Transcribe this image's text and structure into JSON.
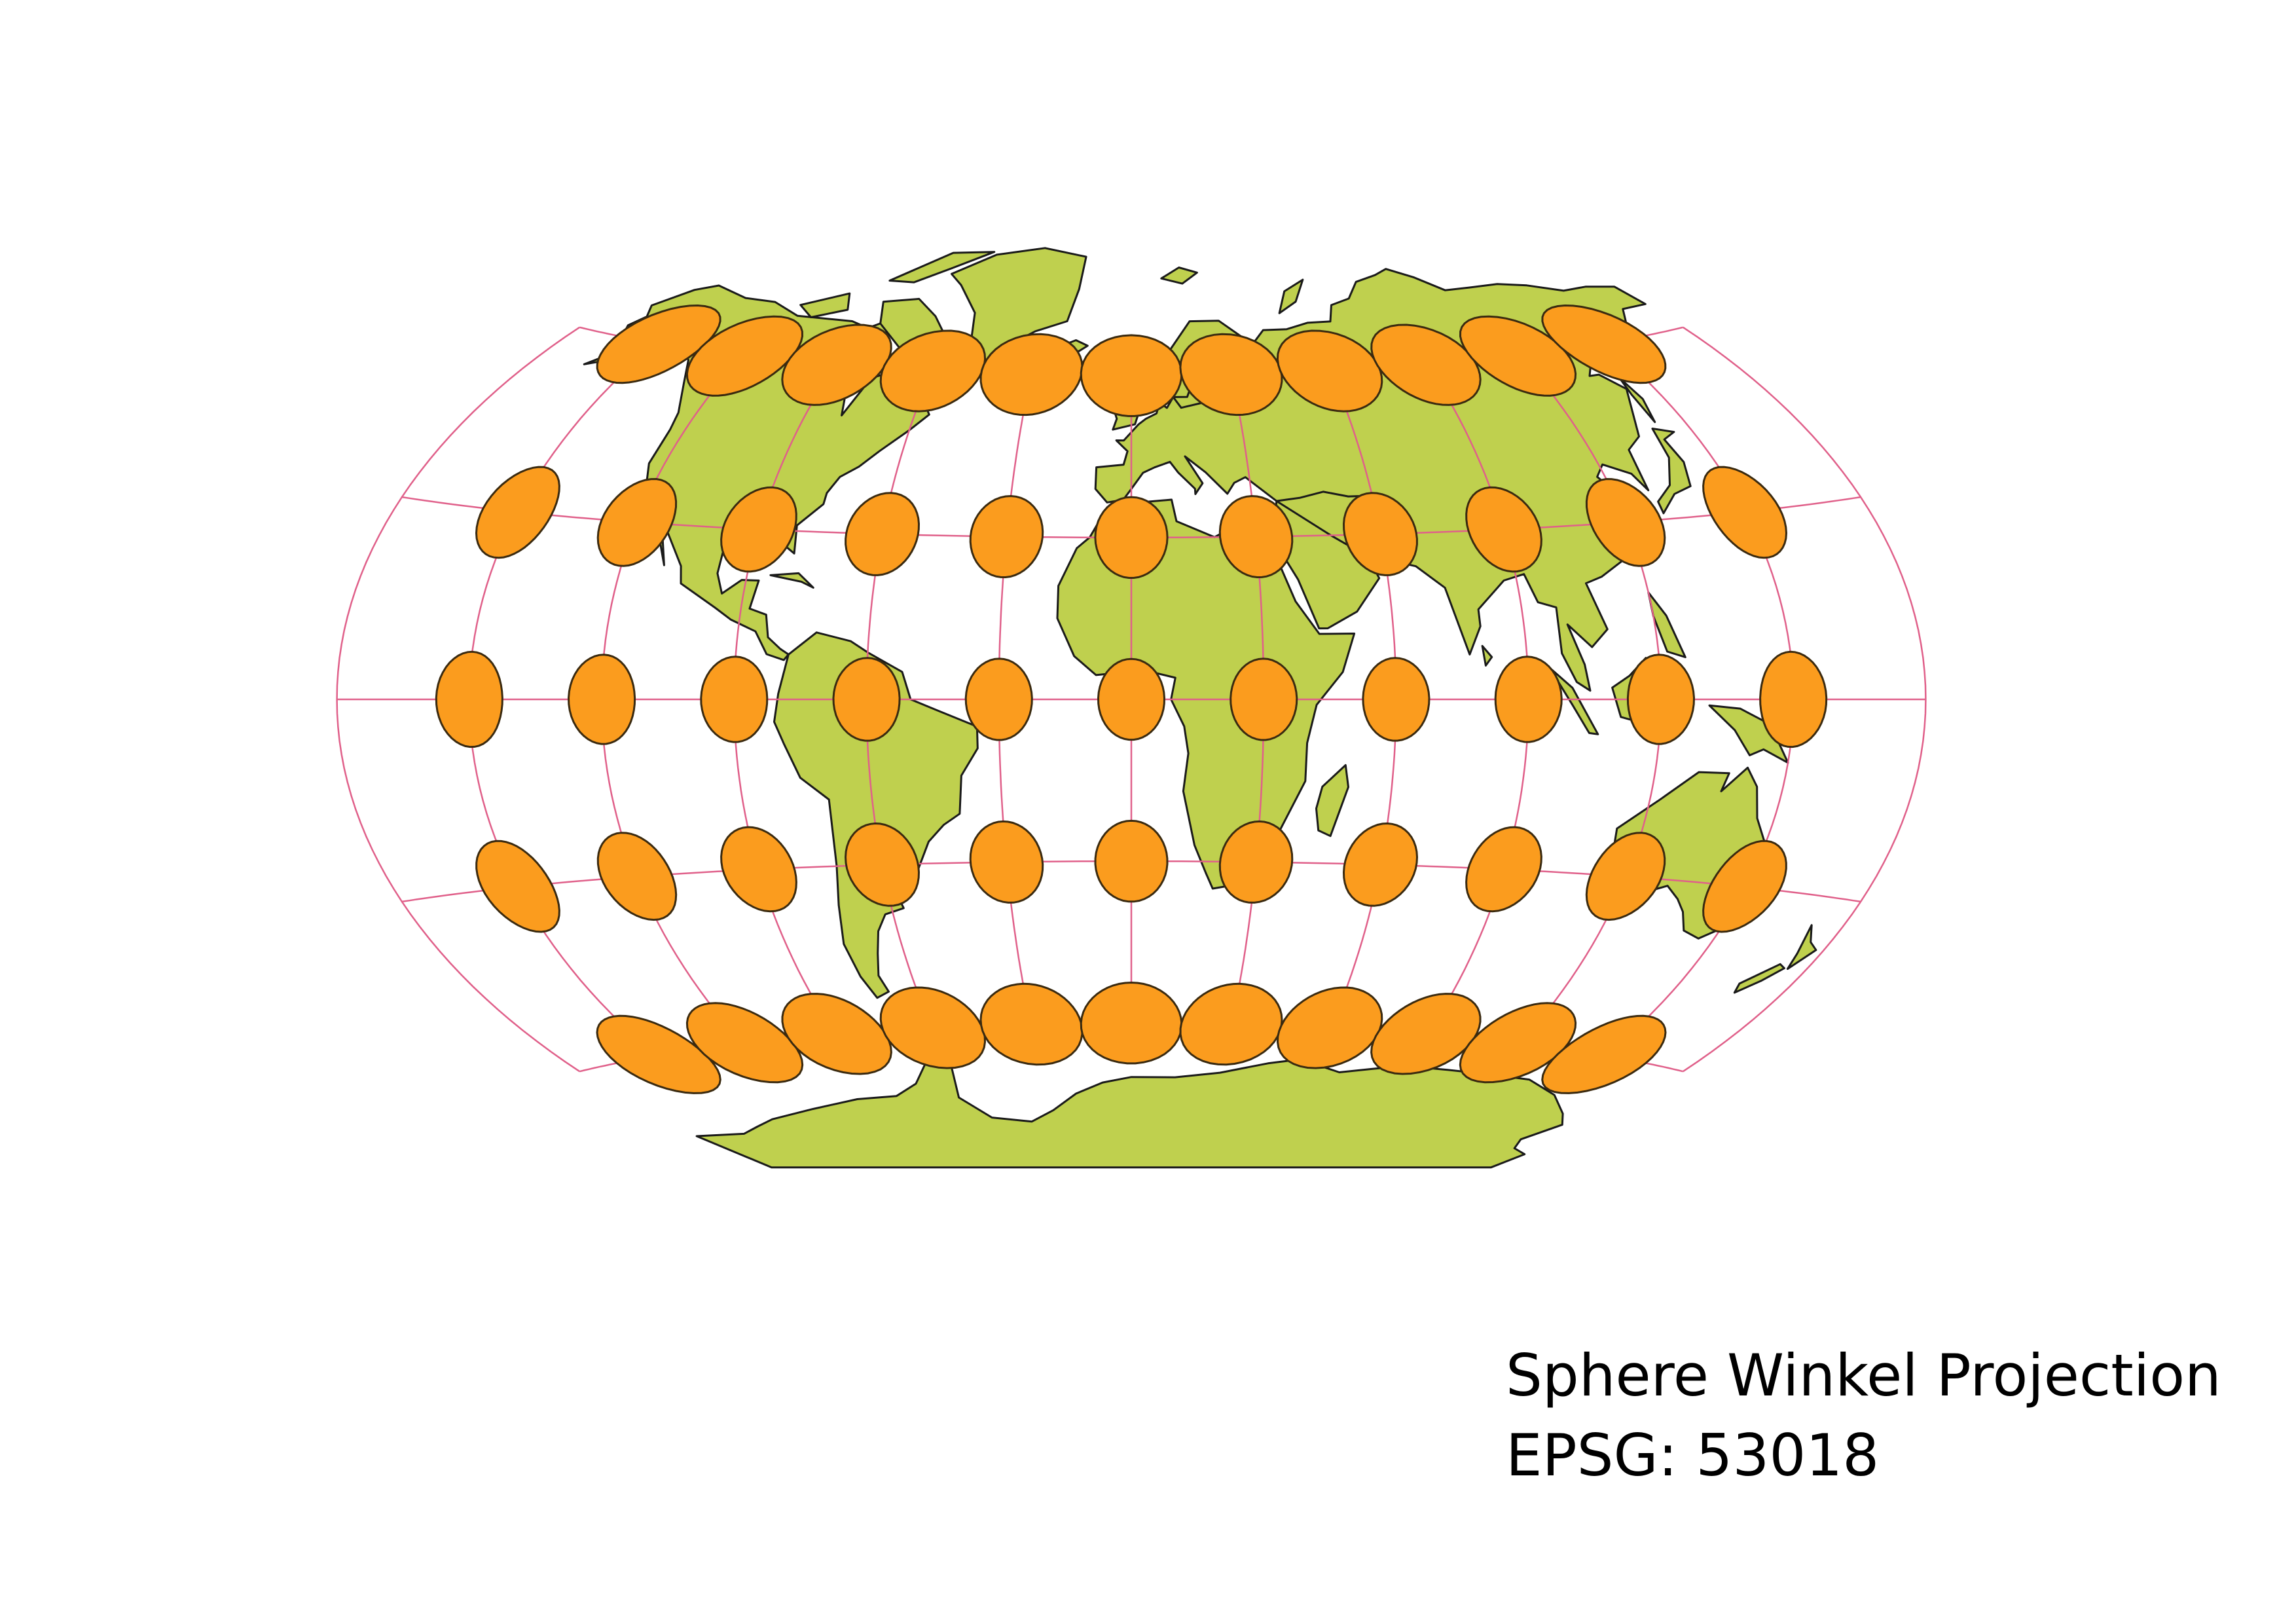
{
  "map": {
    "projection_title": "Sphere Winkel Projection",
    "epsg_label": "EPSG: 53018"
  },
  "style": {
    "land_color": "#bfd04e",
    "land_outline": "#1a1a1a",
    "graticule_color": "#e0608a",
    "ellipse_fill": "#fb9c1e",
    "ellipse_stroke": "#3a2a10",
    "background": "#ffffff"
  },
  "graticule": {
    "latitudes": [
      60,
      30,
      0,
      -30,
      -60
    ],
    "longitudes": [
      -150,
      -120,
      -90,
      -60,
      -30,
      0,
      30,
      60,
      90,
      120,
      150,
      180
    ]
  },
  "tissot_indicatrix": {
    "latitudes": [
      60,
      30,
      0,
      -30,
      -60
    ],
    "longitudes": [
      -150,
      -120,
      -90,
      -60,
      -30,
      0,
      30,
      60,
      90,
      120,
      150
    ]
  }
}
